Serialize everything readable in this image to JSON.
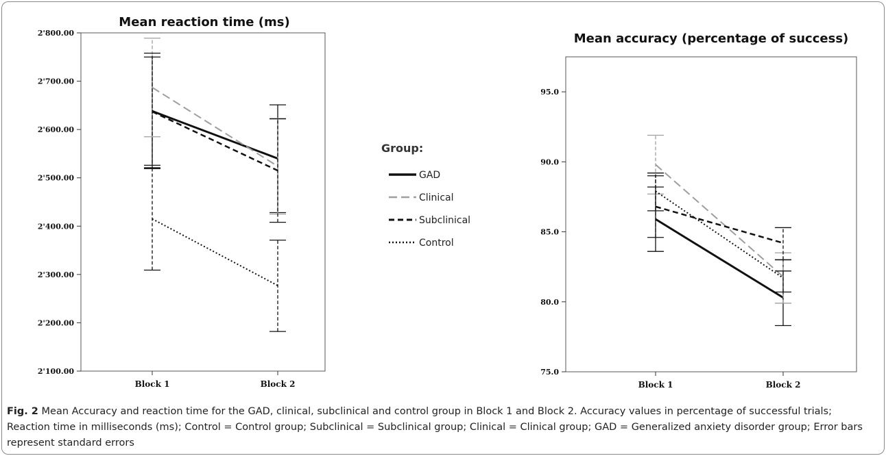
{
  "chart_data": [
    {
      "type": "line",
      "title": "Mean reaction time (ms)",
      "categories": [
        "Block 1",
        "Block 2"
      ],
      "ylim": [
        2100,
        2800
      ],
      "yticks": [
        2100,
        2200,
        2300,
        2400,
        2500,
        2600,
        2700,
        2800
      ],
      "ytick_labels": [
        "2'100.00",
        "2'200.00",
        "2'300.00",
        "2'400.00",
        "2'500.00",
        "2'600.00",
        "2'700.00",
        "2'800.00"
      ],
      "grid": false,
      "series": [
        {
          "name": "GAD",
          "values": [
            2638,
            2540
          ],
          "err_low": [
            2526,
            2428
          ],
          "err_high": [
            2750,
            2651
          ]
        },
        {
          "name": "Clinical",
          "values": [
            2687,
            2524
          ],
          "err_low": [
            2585,
            2425
          ],
          "err_high": [
            2789,
            2623
          ]
        },
        {
          "name": "Subclinical",
          "values": [
            2637,
            2515
          ],
          "err_low": [
            2519,
            2408
          ],
          "err_high": [
            2758,
            2622
          ]
        },
        {
          "name": "Control",
          "values": [
            2415,
            2277
          ],
          "err_low": [
            2309,
            2182
          ],
          "err_high": [
            2521,
            2371
          ]
        }
      ]
    },
    {
      "type": "line",
      "title": "Mean accuracy (percentage of success)",
      "categories": [
        "Block 1",
        "Block 2"
      ],
      "ylim": [
        75,
        97.5
      ],
      "yticks": [
        75,
        80,
        85,
        90,
        95
      ],
      "ytick_labels": [
        "75.0",
        "80.0",
        "85.0",
        "90.0",
        "95.0"
      ],
      "grid": false,
      "series": [
        {
          "name": "GAD",
          "values": [
            85.9,
            80.3
          ],
          "err_low": [
            83.6,
            78.3
          ],
          "err_high": [
            88.2,
            83.0
          ]
        },
        {
          "name": "Clinical",
          "values": [
            89.8,
            81.8
          ],
          "err_low": [
            87.7,
            79.9
          ],
          "err_high": [
            91.9,
            83.5
          ]
        },
        {
          "name": "Subclinical",
          "values": [
            86.8,
            84.2
          ],
          "err_low": [
            84.6,
            83.0
          ],
          "err_high": [
            89.0,
            85.3
          ]
        },
        {
          "name": "Control",
          "values": [
            87.9,
            81.7
          ],
          "err_low": [
            86.5,
            80.7
          ],
          "err_high": [
            89.2,
            82.2
          ]
        }
      ]
    }
  ],
  "legend": {
    "title": "Group:",
    "items": [
      {
        "name": "GAD",
        "color": "#111111",
        "dash": "solid",
        "width": 3
      },
      {
        "name": "Clinical",
        "color": "#9e9e9e",
        "dash": "long-dash",
        "width": 2
      },
      {
        "name": "Subclinical",
        "color": "#111111",
        "dash": "dash",
        "width": 2.5
      },
      {
        "name": "Control",
        "color": "#111111",
        "dash": "dot",
        "width": 2
      }
    ]
  },
  "caption": {
    "label": "Fig. 2",
    "text": " Mean Accuracy and reaction time for the GAD, clinical, subclinical and control group in Block 1 and Block 2. Accuracy values in percentage of successful trials; Reaction time in milliseconds (ms); Control = Control group; Subclinical = Subclinical group; Clinical = Clinical group; GAD = Generalized anxiety disorder group; Error bars represent standard errors"
  }
}
